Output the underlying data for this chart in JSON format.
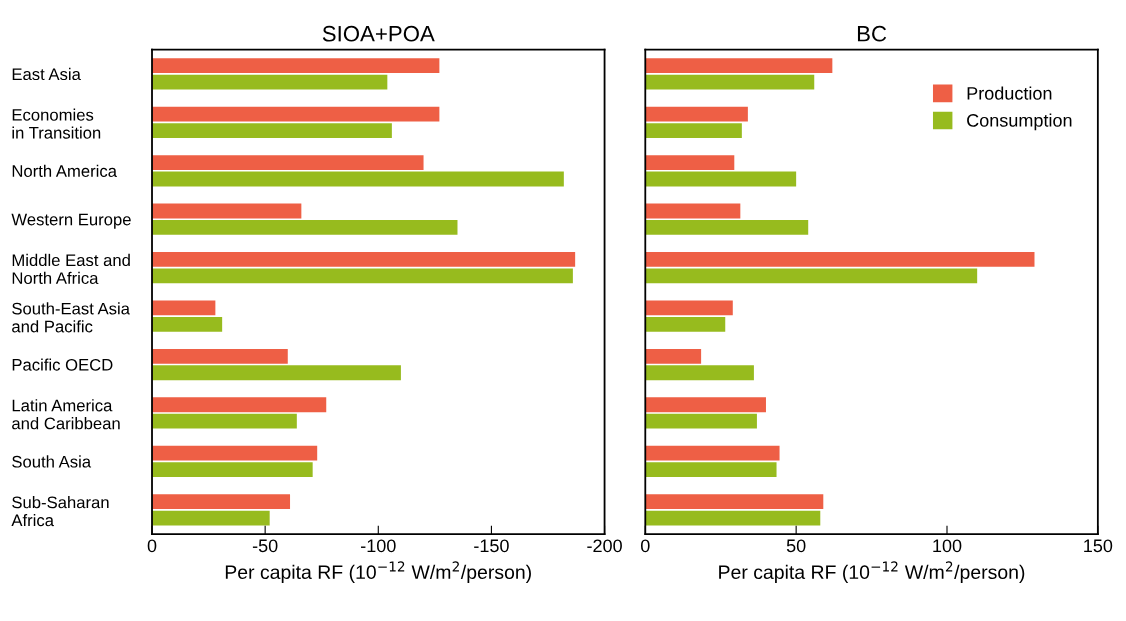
{
  "chart_data": [
    {
      "type": "bar",
      "orientation": "horizontal",
      "title": "SIOA+POA",
      "xlabel": "Per capita RF (10$^{−12}$ W/m$^{2}$/person)",
      "categories": [
        "East Asia",
        "Economies\nin Transition",
        "North America",
        "Western Europe",
        "Middle East and\nNorth Africa",
        "South-East Asia\nand Pacific",
        "Pacific OECD",
        "Latin America\nand Caribbean",
        "South Asia",
        "Sub-Saharan\nAfrica"
      ],
      "series": [
        {
          "color": "#ee5f45",
          "values": [
            -127,
            -127,
            -120,
            -66,
            -187,
            -28,
            -60,
            -77,
            -73,
            -61
          ]
        },
        {
          "color": "#97bb1e",
          "values": [
            -104,
            -106,
            -182,
            -135,
            -186,
            -31,
            -110,
            -64,
            -71,
            -52
          ]
        }
      ],
      "xlim": [
        0,
        -200
      ],
      "xticks": [
        0,
        -50,
        -100,
        -150,
        -200
      ],
      "legend": false,
      "grid": false
    },
    {
      "type": "bar",
      "orientation": "horizontal",
      "title": "BC",
      "xlabel": "Per capita RF (10$^{−12}$ W/m$^{2}$/person)",
      "categories": [
        null,
        null,
        null,
        null,
        null,
        null,
        null,
        null,
        null,
        null
      ],
      "series": [
        {
          "name": "Production",
          "color": "#ee5f45",
          "values": [
            62,
            34,
            29.5,
            31.5,
            129,
            29,
            18.5,
            40,
            44.5,
            59
          ]
        },
        {
          "name": "Consumption",
          "color": "#97bb1e",
          "values": [
            56,
            32,
            50,
            54,
            110,
            26.5,
            36,
            37,
            43.5,
            58
          ]
        }
      ],
      "xlim": [
        0,
        150
      ],
      "xticks": [
        0,
        50,
        100,
        150
      ],
      "tick_labels": "x",
      "legend": "top right",
      "grid": false
    }
  ]
}
